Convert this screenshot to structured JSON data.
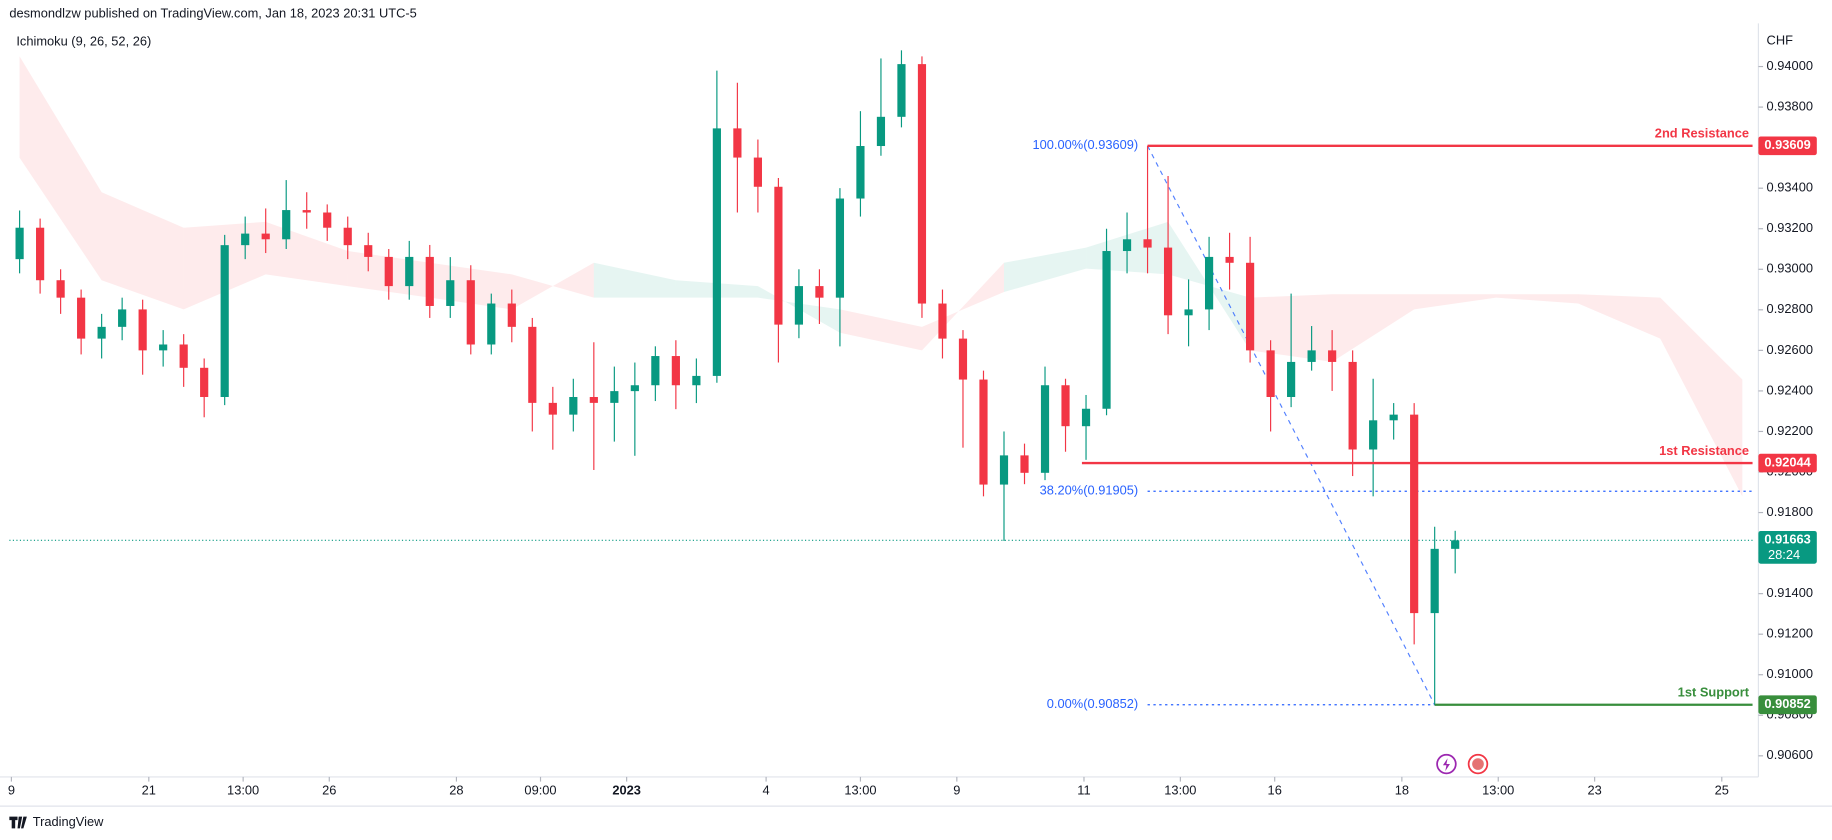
{
  "chart_data": {
    "type": "candlestick",
    "header": "desmondlzw published on TradingView.com, Jan 18, 2023 20:31 UTC-5",
    "indicator": "Ichimoku (9, 26, 52, 26)",
    "currency": "CHF",
    "footer": "TradingView",
    "up_color": "#089981",
    "down_color": "#f23645",
    "open": [
      0.9305,
      0.93205,
      0.92946,
      0.9286,
      0.92658,
      0.92716,
      0.92802,
      0.926,
      0.92629,
      0.92514,
      0.9237,
      0.93119,
      0.93176,
      0.93148,
      0.93292,
      0.9328,
      0.93205,
      0.93119,
      0.93061,
      0.92917,
      0.93061,
      0.92819,
      0.92946,
      0.92629,
      0.92831,
      0.92716,
      0.92341,
      0.92283,
      0.9237,
      0.92341,
      0.92399,
      0.92428,
      0.92572,
      0.92428,
      0.92474,
      0.93695,
      0.93551,
      0.93407,
      0.92727,
      0.92917,
      0.9286,
      0.93349,
      0.93608,
      0.93752,
      0.94012,
      0.92831,
      0.92658,
      0.92456,
      0.91938,
      0.92082,
      0.91996,
      0.92428,
      0.92226,
      0.92312,
      0.9309,
      0.93148,
      0.93107,
      0.92773,
      0.92802,
      0.93061,
      0.93032,
      0.926,
      0.9237,
      0.92543,
      0.926,
      0.92543,
      0.92111,
      0.92255,
      0.92283,
      0.91304,
      0.91621
    ],
    "high": [
      0.9329,
      0.9325,
      0.93,
      0.929,
      0.9278,
      0.9286,
      0.9285,
      0.927,
      0.9268,
      0.9256,
      0.9317,
      0.9326,
      0.933,
      0.9344,
      0.9338,
      0.9332,
      0.9326,
      0.9318,
      0.931,
      0.9314,
      0.9312,
      0.9306,
      0.9302,
      0.9288,
      0.929,
      0.9276,
      0.9242,
      0.9246,
      0.9264,
      0.9252,
      0.9254,
      0.9262,
      0.9265,
      0.9256,
      0.9398,
      0.9392,
      0.9364,
      0.9345,
      0.93,
      0.93,
      0.934,
      0.9378,
      0.9404,
      0.9408,
      0.9405,
      0.929,
      0.927,
      0.925,
      0.922,
      0.9214,
      0.9252,
      0.9246,
      0.9238,
      0.932,
      0.9328,
      0.93609,
      0.9346,
      0.9295,
      0.9316,
      0.9318,
      0.9316,
      0.9265,
      0.9288,
      0.9272,
      0.927,
      0.926,
      0.9246,
      0.9234,
      0.9234,
      0.9173,
      0.9171
    ],
    "low": [
      0.9298,
      0.9288,
      0.9278,
      0.9258,
      0.9256,
      0.9265,
      0.9248,
      0.9252,
      0.9242,
      0.9227,
      0.9233,
      0.9305,
      0.9308,
      0.931,
      0.932,
      0.9314,
      0.9305,
      0.9299,
      0.9285,
      0.9285,
      0.9276,
      0.9276,
      0.9258,
      0.9258,
      0.9264,
      0.922,
      0.9211,
      0.922,
      0.9201,
      0.9215,
      0.9208,
      0.9235,
      0.9231,
      0.9234,
      0.9244,
      0.9328,
      0.9328,
      0.9254,
      0.9266,
      0.9273,
      0.9262,
      0.9326,
      0.9356,
      0.937,
      0.9276,
      0.9256,
      0.9212,
      0.9188,
      0.9166,
      0.9194,
      0.9196,
      0.921,
      0.9206,
      0.9228,
      0.9298,
      0.9298,
      0.9268,
      0.9262,
      0.927,
      0.929,
      0.9254,
      0.922,
      0.9232,
      0.925,
      0.924,
      0.9198,
      0.9188,
      0.9216,
      0.9115,
      0.90852,
      0.915
    ],
    "close": [
      0.93205,
      0.92946,
      0.9286,
      0.92658,
      0.92716,
      0.92802,
      0.926,
      0.92629,
      0.92514,
      0.9237,
      0.93119,
      0.93176,
      0.93148,
      0.93292,
      0.9328,
      0.93205,
      0.93119,
      0.93061,
      0.92917,
      0.93061,
      0.92819,
      0.92946,
      0.92629,
      0.92831,
      0.92716,
      0.92341,
      0.92283,
      0.9237,
      0.92341,
      0.92399,
      0.92428,
      0.92572,
      0.92428,
      0.92474,
      0.93695,
      0.93551,
      0.93407,
      0.92727,
      0.92917,
      0.9286,
      0.93349,
      0.93608,
      0.93752,
      0.94012,
      0.92831,
      0.92658,
      0.92456,
      0.91938,
      0.92082,
      0.91996,
      0.92428,
      0.92226,
      0.92312,
      0.9309,
      0.93148,
      0.93107,
      0.92773,
      0.92802,
      0.93061,
      0.93032,
      0.926,
      0.9237,
      0.92543,
      0.926,
      0.92543,
      0.92111,
      0.92255,
      0.92283,
      0.91304,
      0.91621,
      0.91663
    ],
    "xlim": [
      -0.5,
      84.5
    ],
    "xticks": [
      {
        "value": -0.4,
        "label": "9"
      },
      {
        "value": 6.3,
        "label": "21"
      },
      {
        "value": 10.9,
        "label": "13:00"
      },
      {
        "value": 15.1,
        "label": "26"
      },
      {
        "value": 21.3,
        "label": "28"
      },
      {
        "value": 25.4,
        "label": "09:00"
      },
      {
        "value": 29.6,
        "label": "2023"
      },
      {
        "value": 36.4,
        "label": "4"
      },
      {
        "value": 41.0,
        "label": "13:00"
      },
      {
        "value": 45.7,
        "label": "9"
      },
      {
        "value": 51.9,
        "label": "11"
      },
      {
        "value": 56.6,
        "label": "13:00"
      },
      {
        "value": 61.2,
        "label": "16"
      },
      {
        "value": 67.4,
        "label": "18"
      },
      {
        "value": 72.1,
        "label": "13:00"
      },
      {
        "value": 76.8,
        "label": "23"
      },
      {
        "value": 83.0,
        "label": "25"
      }
    ],
    "ylim": [
      0.90496,
      0.94213
    ],
    "yticks": [
      {
        "value": 0.906,
        "label": "0.90600"
      },
      {
        "value": 0.908,
        "label": "0.90800"
      },
      {
        "value": 0.91,
        "label": "0.91000"
      },
      {
        "value": 0.912,
        "label": "0.91200"
      },
      {
        "value": 0.914,
        "label": "0.91400"
      },
      {
        "value": 0.916,
        "label": "0.91600"
      },
      {
        "value": 0.918,
        "label": "0.91800"
      },
      {
        "value": 0.92,
        "label": "0.92000"
      },
      {
        "value": 0.922,
        "label": "0.92200"
      },
      {
        "value": 0.924,
        "label": "0.92400"
      },
      {
        "value": 0.926,
        "label": "0.92600"
      },
      {
        "value": 0.928,
        "label": "0.92800"
      },
      {
        "value": 0.93,
        "label": "0.93000"
      },
      {
        "value": 0.932,
        "label": "0.93200"
      },
      {
        "value": 0.934,
        "label": "0.93400"
      },
      {
        "value": 0.936,
        "label": "0.93600"
      },
      {
        "value": 0.938,
        "label": "0.93800"
      },
      {
        "value": 0.94,
        "label": "0.94000"
      }
    ],
    "grid": false,
    "cloud": {
      "bull_color": "rgba(8,153,129,0.10)",
      "bear_color": "rgba(242,54,69,0.10)",
      "x": [
        0,
        4,
        8,
        12,
        16,
        20,
        24,
        28,
        32,
        36,
        40,
        44,
        48,
        52,
        56,
        60,
        64,
        68,
        72,
        76,
        80,
        84
      ],
      "span_a": [
        0.9355,
        0.92946,
        0.92802,
        0.92975,
        0.92917,
        0.9286,
        0.92802,
        0.93032,
        0.92946,
        0.92917,
        0.92687,
        0.926,
        0.93032,
        0.93107,
        0.93234,
        0.926,
        0.92543,
        0.92802,
        0.9286,
        0.92831,
        0.92658,
        0.9188
      ],
      "span_b": [
        0.9405,
        0.9338,
        0.93205,
        0.93234,
        0.9309,
        0.93032,
        0.92975,
        0.9286,
        0.9286,
        0.9286,
        0.92802,
        0.92716,
        0.92888,
        0.93003,
        0.92975,
        0.9286,
        0.92877,
        0.92877,
        0.92877,
        0.92877,
        0.9286,
        0.92456
      ]
    },
    "levels": [
      {
        "name": "2nd Resistance",
        "value": 0.93609,
        "from": 55,
        "color": "#f23645"
      },
      {
        "name": "1st Resistance",
        "value": 0.92044,
        "from": 51.8,
        "color": "#f23645"
      },
      {
        "name": "1st Support",
        "value": 0.90852,
        "from": 69,
        "color": "#388e3c"
      }
    ],
    "fib": [
      {
        "label": "100.00%(0.93609)",
        "value": 0.93609,
        "from": 55
      },
      {
        "label": "38.20%(0.91905)",
        "value": 0.91905,
        "from": 55
      },
      {
        "label": "0.00%(0.90852)",
        "value": 0.90852,
        "from": 55,
        "to": 69
      }
    ],
    "trendline": {
      "x": [
        55,
        69
      ],
      "y": [
        0.93609,
        0.90852
      ]
    },
    "last": {
      "value": 0.91663,
      "countdown": "28:24",
      "color": "#089981"
    }
  }
}
